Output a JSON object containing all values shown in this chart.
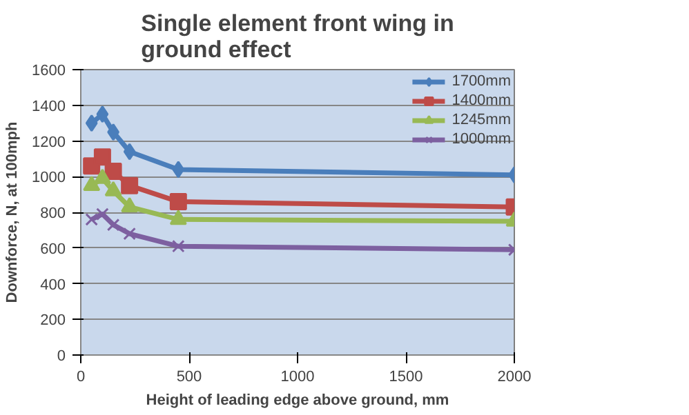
{
  "chart_data": {
    "type": "line",
    "title": "Single element front wing in ground effect",
    "xlabel": "Height of leading edge above ground, mm",
    "ylabel": "Downforce, N, at 100mph",
    "x": [
      50,
      100,
      150,
      225,
      450,
      2000
    ],
    "series": [
      {
        "name": "1700mm",
        "color": "#4a7ebb",
        "marker": "diamond",
        "values": [
          1300,
          1350,
          1250,
          1140,
          1040,
          1010
        ]
      },
      {
        "name": "1400mm",
        "color": "#be4b48",
        "marker": "square",
        "values": [
          1060,
          1110,
          1030,
          950,
          860,
          830
        ]
      },
      {
        "name": "1245mm",
        "color": "#98b954",
        "marker": "triangle",
        "values": [
          950,
          990,
          920,
          830,
          760,
          750
        ]
      },
      {
        "name": "1000mm",
        "color": "#7d60a0",
        "marker": "cross",
        "values": [
          760,
          790,
          730,
          680,
          610,
          590
        ]
      }
    ],
    "xlim": [
      0,
      2000
    ],
    "xticks": [
      0,
      500,
      1000,
      1500,
      2000
    ],
    "ylim": [
      0,
      1600
    ],
    "yticks": [
      0,
      200,
      400,
      600,
      800,
      1000,
      1200,
      1400,
      1600
    ],
    "grid": "y",
    "legend": "top right",
    "line_style": "solid"
  }
}
